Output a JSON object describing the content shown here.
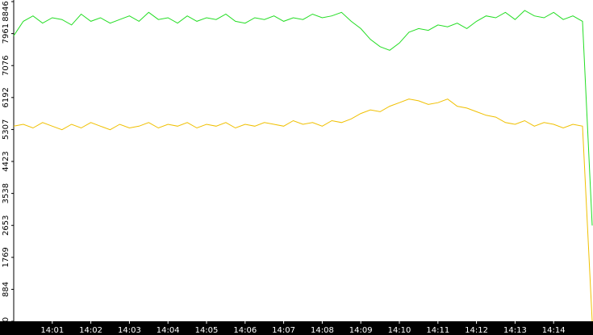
{
  "chart_data": {
    "type": "line",
    "categories": [
      null,
      null,
      null,
      null,
      "14:01",
      null,
      null,
      null,
      "14:02",
      null,
      null,
      null,
      "14:03",
      null,
      null,
      null,
      "14:04",
      null,
      null,
      null,
      "14:05",
      null,
      null,
      null,
      "14:06",
      null,
      null,
      null,
      "14:07",
      null,
      null,
      null,
      "14:08",
      null,
      null,
      null,
      "14:09",
      null,
      null,
      null,
      "14:10",
      null,
      null,
      null,
      "14:11",
      null,
      null,
      null,
      "14:12",
      null,
      null,
      null,
      "14:13",
      null,
      null,
      null,
      "14:14",
      null,
      null,
      null,
      null
    ],
    "series": [
      {
        "color": "#22dd22",
        "values": [
          7900,
          8300,
          8450,
          8250,
          8400,
          8350,
          8200,
          8500,
          8300,
          8400,
          8250,
          8350,
          8450,
          8300,
          8550,
          8350,
          8400,
          8250,
          8450,
          8300,
          8400,
          8350,
          8500,
          8300,
          8250,
          8400,
          8350,
          8450,
          8300,
          8400,
          8350,
          8500,
          8400,
          8450,
          8550,
          8300,
          8100,
          7800,
          7600,
          7500,
          7700,
          8000,
          8100,
          8050,
          8200,
          8150,
          8250,
          8100,
          8300,
          8450,
          8400,
          8550,
          8350,
          8600,
          8450,
          8400,
          8550,
          8350,
          8450,
          8300,
          2650
        ]
      },
      {
        "color": "#f0c000",
        "values": [
          5400,
          5450,
          5350,
          5500,
          5400,
          5300,
          5450,
          5350,
          5500,
          5400,
          5300,
          5450,
          5350,
          5400,
          5500,
          5350,
          5450,
          5400,
          5500,
          5350,
          5450,
          5400,
          5500,
          5350,
          5450,
          5400,
          5500,
          5450,
          5400,
          5550,
          5450,
          5500,
          5400,
          5550,
          5500,
          5600,
          5750,
          5850,
          5800,
          5950,
          6050,
          6150,
          6100,
          6000,
          6050,
          6150,
          5950,
          5900,
          5800,
          5700,
          5650,
          5500,
          5450,
          5550,
          5400,
          5500,
          5450,
          5350,
          5450,
          5400,
          0
        ]
      }
    ],
    "ylim": [
      0,
      8846
    ],
    "yticks": [
      0,
      884,
      1769,
      2653,
      3538,
      4423,
      5307,
      6192,
      7076,
      7961,
      8846
    ]
  }
}
